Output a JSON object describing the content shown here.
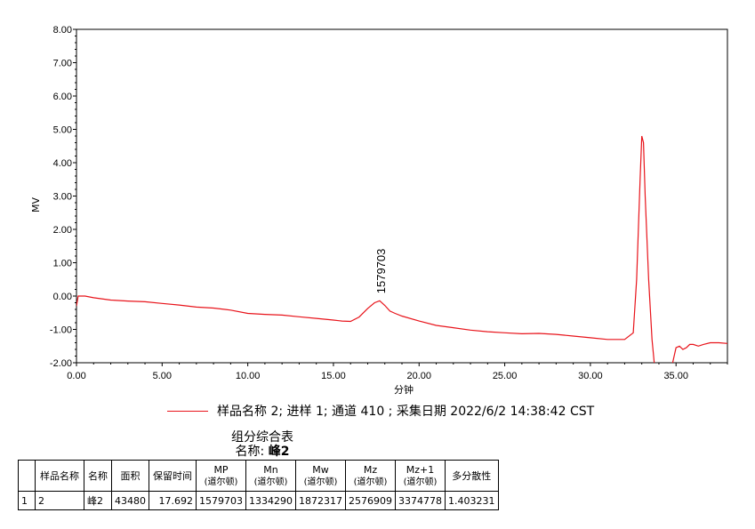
{
  "chart_data": {
    "type": "line",
    "xlabel": "分钟",
    "ylabel": "MV",
    "xlim": [
      0,
      38
    ],
    "ylim": [
      -2,
      8
    ],
    "x_ticks": [
      "0.00",
      "5.00",
      "10.00",
      "15.00",
      "20.00",
      "25.00",
      "30.00",
      "35.00"
    ],
    "y_ticks": [
      "-2.00",
      "-1.00",
      "0.00",
      "1.00",
      "2.00",
      "3.00",
      "4.00",
      "5.00",
      "6.00",
      "7.00",
      "8.00"
    ],
    "series": [
      {
        "name": "样品名称 2; 进样 1; 通道 410 ; 采集日期 2022/6/2 14:38:42 CST",
        "color": "#e8141b",
        "x": [
          0.0,
          0.1,
          0.5,
          1.0,
          2.0,
          3.0,
          4.0,
          5.0,
          6.0,
          7.0,
          8.0,
          9.0,
          10.0,
          11.0,
          12.0,
          13.0,
          14.0,
          15.0,
          15.5,
          16.0,
          16.5,
          17.0,
          17.4,
          17.7,
          18.0,
          18.3,
          18.6,
          19.0,
          20.0,
          21.0,
          22.0,
          23.0,
          24.0,
          25.0,
          26.0,
          27.0,
          28.0,
          29.0,
          30.0,
          31.0,
          32.0,
          32.5,
          32.7,
          32.9,
          33.0,
          33.1,
          33.2,
          33.4,
          33.6,
          33.8,
          34.0,
          34.2,
          34.5,
          34.8,
          35.0,
          35.2,
          35.4,
          35.6,
          35.8,
          36.0,
          36.3,
          36.6,
          37.0,
          37.5,
          38.0
        ],
        "y": [
          -0.3,
          0.0,
          0.0,
          -0.05,
          -0.12,
          -0.15,
          -0.17,
          -0.22,
          -0.27,
          -0.33,
          -0.36,
          -0.42,
          -0.52,
          -0.55,
          -0.57,
          -0.62,
          -0.67,
          -0.72,
          -0.75,
          -0.76,
          -0.63,
          -0.37,
          -0.2,
          -0.14,
          -0.28,
          -0.45,
          -0.52,
          -0.6,
          -0.75,
          -0.88,
          -0.95,
          -1.02,
          -1.07,
          -1.1,
          -1.13,
          -1.12,
          -1.15,
          -1.2,
          -1.25,
          -1.3,
          -1.3,
          -1.1,
          0.5,
          3.5,
          4.8,
          4.6,
          3.0,
          0.5,
          -1.3,
          -2.4,
          -2.6,
          -2.5,
          -2.2,
          -2.0,
          -1.55,
          -1.5,
          -1.6,
          -1.55,
          -1.45,
          -1.45,
          -1.5,
          -1.45,
          -1.4,
          -1.4,
          -1.42
        ]
      }
    ],
    "annotations": [
      {
        "text": "1579703",
        "x": 17.7,
        "y": -0.14
      }
    ]
  },
  "legend": {
    "label": "样品名称 2; 进样 1; 通道 410 ; 采集日期 2022/6/2 14:38:42 CST"
  },
  "summary": {
    "title": "组分综合表",
    "name_label": "名称:",
    "name_value": "峰2",
    "headers": [
      {
        "main": "",
        "sub": ""
      },
      {
        "main": "样品名称",
        "sub": ""
      },
      {
        "main": "名称",
        "sub": ""
      },
      {
        "main": "面积",
        "sub": ""
      },
      {
        "main": "保留时间",
        "sub": ""
      },
      {
        "main": "MP",
        "sub": "(道尔顿)"
      },
      {
        "main": "Mn",
        "sub": "(道尔顿)"
      },
      {
        "main": "Mw",
        "sub": "(道尔顿)"
      },
      {
        "main": "Mz",
        "sub": "(道尔顿)"
      },
      {
        "main": "Mz+1",
        "sub": "(道尔顿)"
      },
      {
        "main": "多分散性",
        "sub": ""
      }
    ],
    "rows": [
      [
        "1",
        "2",
        "峰2",
        "43480",
        "17.692",
        "1579703",
        "1334290",
        "1872317",
        "2576909",
        "3374778",
        "1.403231"
      ]
    ]
  }
}
